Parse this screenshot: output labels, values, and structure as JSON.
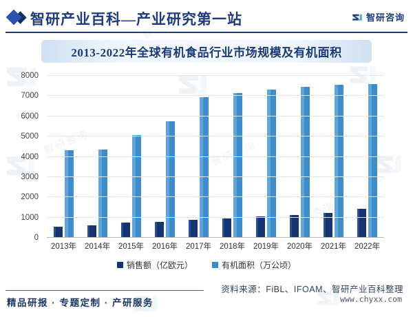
{
  "header": {
    "title": "智研产业百科—产业研究第一站",
    "logo_text": "智研咨询"
  },
  "banner": {
    "title": "2013-2022年全球有机食品行业市场规模及有机面积"
  },
  "chart_data": {
    "type": "bar",
    "title": "2013-2022年全球有机食品行业市场规模及有机面积",
    "categories": [
      "2013年",
      "2014年",
      "2015年",
      "2016年",
      "2017年",
      "2018年",
      "2019年",
      "2020年",
      "2021年",
      "2022年"
    ],
    "series": [
      {
        "name": "销售额（亿欧元）",
        "color": "#153470",
        "values": [
          550,
          630,
          760,
          800,
          890,
          960,
          1040,
          1120,
          1220,
          1430
        ]
      },
      {
        "name": "有机面积（万公顷）",
        "color": "#3c8dca",
        "values": [
          4310,
          4370,
          5070,
          5750,
          6950,
          7150,
          7320,
          7450,
          7560,
          7600
        ]
      }
    ],
    "ylim": [
      0,
      8000
    ],
    "ytick_step": 1000,
    "grid": true,
    "legend_position": "bottom"
  },
  "footer": {
    "services": "精品研报 · 专题定制 · 产研服务",
    "source": "资料来源：FiBL、IFOAM、智研产业百科整理",
    "website": "www.chyxx.com"
  },
  "watermark": {
    "text": "智研咨询"
  },
  "colors": {
    "accent_navy": "#1e3c7d",
    "bar_dark": "#153470",
    "bar_light": "#3c8dca",
    "banner_edge": "#cfe0f2",
    "gridline": "#e5e5e5"
  }
}
